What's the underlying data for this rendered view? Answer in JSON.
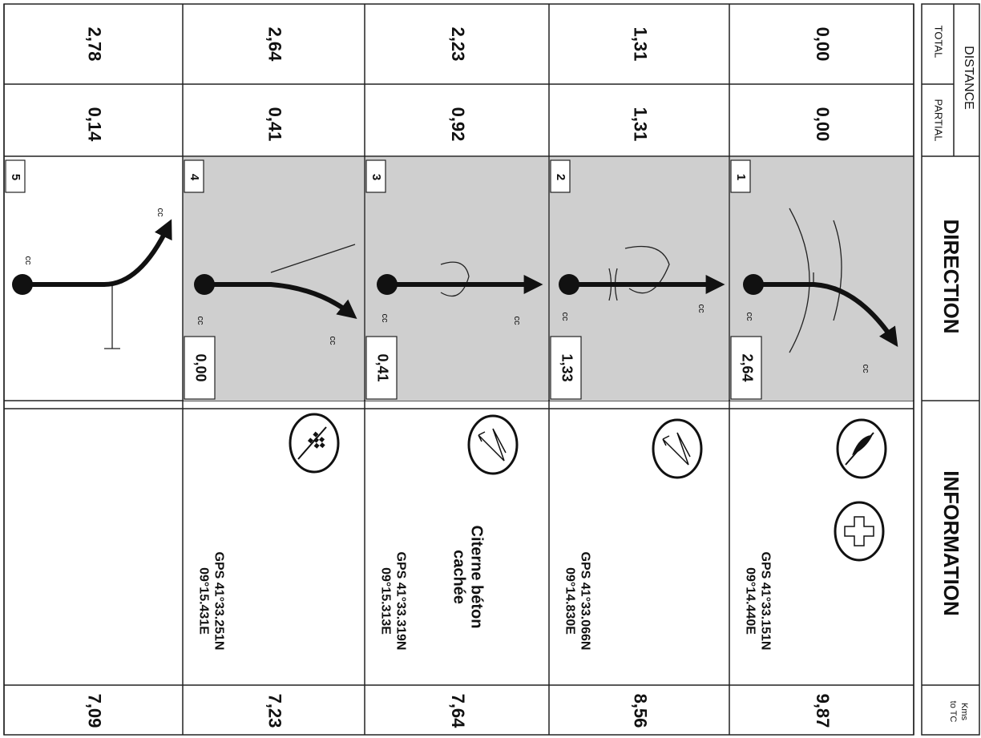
{
  "header": {
    "distance": "DISTANCE",
    "total": "TOTAL",
    "partial": "PARTIAL",
    "direction": "DIRECTION",
    "information": "INFORMATION",
    "kms_to_tc": [
      "Kms",
      "to TC"
    ]
  },
  "rows": [
    {
      "number": "1",
      "total": "0,00",
      "partial": "0,00",
      "odometer": "2,64",
      "cc": [
        "cc",
        "cc"
      ],
      "gps": [
        "GPS 41°33.151N",
        "09°14.440E"
      ],
      "kms_to_tc": "9,87"
    },
    {
      "number": "2",
      "total": "1,31",
      "partial": "1,31",
      "odometer": "1,33",
      "cc": [
        "cc",
        "cc"
      ],
      "gps": [
        "GPS 41°33.066N",
        "09°14.830E"
      ],
      "kms_to_tc": "8,56"
    },
    {
      "number": "3",
      "total": "2,23",
      "partial": "0,92",
      "odometer": "0,41",
      "cc": [
        "cc",
        "cc"
      ],
      "note": [
        "Citerne béton",
        "cachée"
      ],
      "gps": [
        "GPS 41°33.319N",
        "09°15.313E"
      ],
      "kms_to_tc": "7,64"
    },
    {
      "number": "4",
      "total": "2,64",
      "partial": "0,41",
      "odometer": "0,00",
      "cc": [
        "cc",
        "cc"
      ],
      "gps": [
        "GPS 41°33.251N",
        "09°15.431E"
      ],
      "kms_to_tc": "7,23"
    },
    {
      "number": "5",
      "total": "2,78",
      "partial": "0,14",
      "cc": [
        "cc",
        "cc"
      ],
      "kms_to_tc": "7,09"
    }
  ]
}
